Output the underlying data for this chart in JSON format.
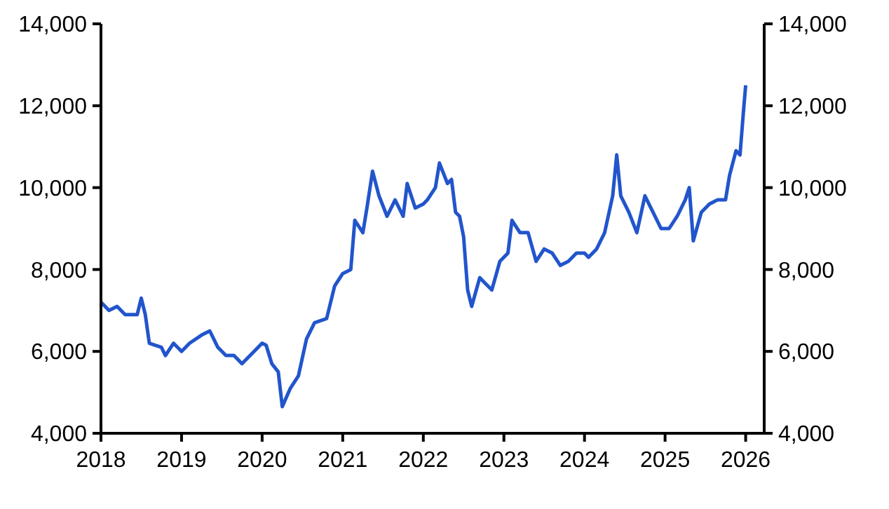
{
  "chart_data": {
    "type": "line",
    "xlim": [
      2018,
      2026.23
    ],
    "xticks": [
      2018,
      2019,
      2020,
      2021,
      2022,
      2023,
      2024,
      2025,
      2026
    ],
    "ylim": [
      4000,
      14000
    ],
    "yticks": [
      {
        "value": 4000,
        "label": "4,000"
      },
      {
        "value": 6000,
        "label": "6,000"
      },
      {
        "value": 8000,
        "label": "8,000"
      },
      {
        "value": 10000,
        "label": "10,000"
      },
      {
        "value": 12000,
        "label": "12,000"
      },
      {
        "value": 14000,
        "label": "14,000"
      }
    ],
    "y2lim": [
      4000,
      14000
    ],
    "y2ticks": [
      {
        "value": 4000,
        "label": "4,000"
      },
      {
        "value": 6000,
        "label": "6,000"
      },
      {
        "value": 8000,
        "label": "8,000"
      },
      {
        "value": 10000,
        "label": "10,000"
      },
      {
        "value": 12000,
        "label": "12,000"
      },
      {
        "value": 14000,
        "label": "14,000"
      }
    ],
    "grid": false,
    "series": [
      {
        "color": "#2255cc",
        "x": [
          2018.0,
          2018.1,
          2018.2,
          2018.3,
          2018.45,
          2018.5,
          2018.55,
          2018.6,
          2018.75,
          2018.8,
          2018.9,
          2019.0,
          2019.1,
          2019.25,
          2019.35,
          2019.45,
          2019.55,
          2019.65,
          2019.75,
          2019.9,
          2020.0,
          2020.05,
          2020.12,
          2020.2,
          2020.25,
          2020.35,
          2020.45,
          2020.55,
          2020.65,
          2020.8,
          2020.9,
          2021.0,
          2021.1,
          2021.15,
          2021.25,
          2021.3,
          2021.37,
          2021.45,
          2021.55,
          2021.65,
          2021.75,
          2021.8,
          2021.9,
          2022.0,
          2022.05,
          2022.15,
          2022.2,
          2022.3,
          2022.35,
          2022.4,
          2022.45,
          2022.5,
          2022.55,
          2022.6,
          2022.7,
          2022.75,
          2022.85,
          2022.95,
          2023.05,
          2023.1,
          2023.2,
          2023.3,
          2023.4,
          2023.5,
          2023.6,
          2023.7,
          2023.8,
          2023.9,
          2024.0,
          2024.05,
          2024.15,
          2024.25,
          2024.35,
          2024.4,
          2024.45,
          2024.55,
          2024.65,
          2024.75,
          2024.85,
          2024.95,
          2025.05,
          2025.15,
          2025.25,
          2025.3,
          2025.35,
          2025.45,
          2025.55,
          2025.65,
          2025.75,
          2025.8,
          2025.88,
          2025.93,
          2025.97,
          2026.0
        ],
        "values": [
          7200,
          7000,
          7100,
          6900,
          6900,
          7300,
          6900,
          6200,
          6100,
          5900,
          6200,
          6000,
          6200,
          6400,
          6500,
          6100,
          5900,
          5900,
          5700,
          6000,
          6200,
          6150,
          5700,
          5500,
          4650,
          5100,
          5400,
          6300,
          6700,
          6800,
          7600,
          7900,
          8000,
          9200,
          8900,
          9500,
          10400,
          9800,
          9300,
          9700,
          9300,
          10100,
          9500,
          9600,
          9700,
          10000,
          10600,
          10100,
          10200,
          9400,
          9300,
          8800,
          7500,
          7100,
          7800,
          7700,
          7500,
          8200,
          8400,
          9200,
          8900,
          8900,
          8200,
          8500,
          8400,
          8100,
          8200,
          8400,
          8400,
          8300,
          8500,
          8900,
          9800,
          10800,
          9800,
          9400,
          8900,
          9800,
          9400,
          9000,
          9000,
          9300,
          9700,
          10000,
          8700,
          9400,
          9600,
          9700,
          9700,
          10300,
          10900,
          10800,
          11800,
          12500
        ]
      }
    ]
  }
}
